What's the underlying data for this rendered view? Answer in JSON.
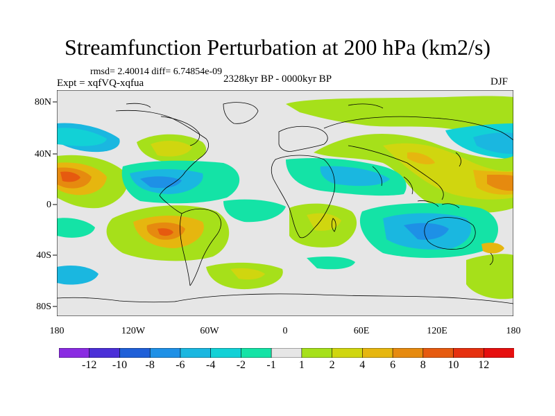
{
  "title": "Streamfunction Perturbation at 200 hPa (km2/s)",
  "stats": "rmsd= 2.40014 diff= 6.74854e-09",
  "experiment": "Expt = xqfVQ-xqfua",
  "period": "2328kyr BP - 0000kyr BP",
  "season": "DJF",
  "axes": {
    "lat_labels": [
      "80N",
      "40N",
      "0",
      "40S",
      "80S"
    ],
    "lon_labels": [
      "180",
      "120W",
      "60W",
      "0",
      "60E",
      "120E",
      "180"
    ]
  },
  "colorbar": {
    "colors": [
      "#8a2be2",
      "#4b2fd8",
      "#1f5fd8",
      "#1e90e6",
      "#1ab7e0",
      "#12d1d6",
      "#14e3a6",
      "#e6e6e6",
      "#a6e01a",
      "#d0d60f",
      "#e6b60f",
      "#e68a0f",
      "#e65a0f",
      "#e6300f",
      "#e60f0f"
    ],
    "labels": [
      "-12",
      "-10",
      "-8",
      "-6",
      "-4",
      "-2",
      "-1",
      "1",
      "2",
      "4",
      "6",
      "8",
      "10",
      "12"
    ]
  },
  "palette": {
    "background": "#e6e6e6",
    "land": "#000000"
  }
}
